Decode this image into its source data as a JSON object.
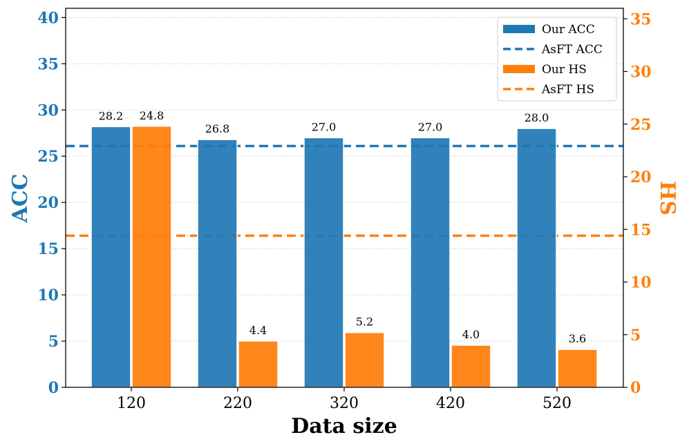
{
  "chart_data": {
    "type": "bar",
    "title": "",
    "xlabel": "Data size",
    "ylabel": "ACC",
    "y2label": "HS",
    "categories": [
      "120",
      "220",
      "320",
      "420",
      "520"
    ],
    "ylim": [
      0,
      41
    ],
    "y2lim": [
      0,
      36
    ],
    "yticks": [
      0,
      5,
      10,
      15,
      20,
      25,
      30,
      35,
      40
    ],
    "y2ticks": [
      0,
      5,
      10,
      15,
      20,
      25,
      30,
      35
    ],
    "series": [
      {
        "name": "Our ACC",
        "axis": "left",
        "color": "#1f77b4",
        "values": [
          28.2,
          26.8,
          27.0,
          27.0,
          28.0
        ],
        "labels": [
          "28.2",
          "26.8",
          "27.0",
          "27.0",
          "28.0"
        ]
      },
      {
        "name": "Our HS",
        "axis": "right",
        "color": "#ff7f0e",
        "values": [
          24.8,
          4.4,
          5.2,
          4.0,
          3.6
        ],
        "labels": [
          "24.8",
          "4.4",
          "5.2",
          "4.0",
          "3.6"
        ]
      }
    ],
    "reference_lines": [
      {
        "name": "AsFT ACC",
        "axis": "left",
        "value": 26.1,
        "color": "#1f77b4",
        "style": "dashed"
      },
      {
        "name": "AsFT HS",
        "axis": "right",
        "value": 14.4,
        "color": "#ff7f0e",
        "style": "dashed"
      }
    ],
    "legend": {
      "position": "top-right",
      "entries": [
        {
          "label": "Our ACC",
          "kind": "bar",
          "color": "#1f77b4"
        },
        {
          "label": "AsFT ACC",
          "kind": "dashed",
          "color": "#1f77b4"
        },
        {
          "label": "Our HS",
          "kind": "bar",
          "color": "#ff7f0e"
        },
        {
          "label": "AsFT HS",
          "kind": "dashed",
          "color": "#ff7f0e"
        }
      ]
    },
    "grid": "horizontal-dotted"
  }
}
